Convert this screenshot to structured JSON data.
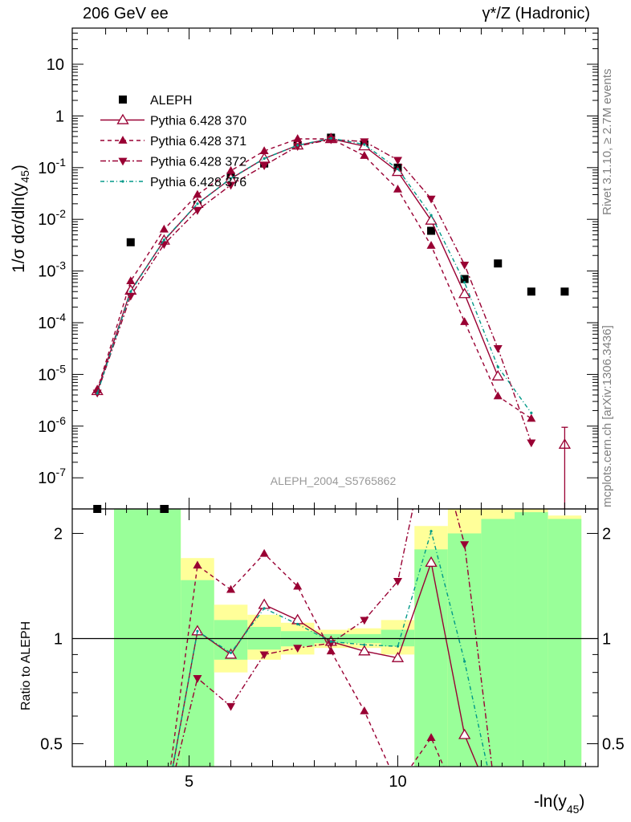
{
  "header": {
    "left": "206 GeV ee",
    "right": "γ*/Z (Hadronic)"
  },
  "side_labels": {
    "rivet": "Rivet 3.1.10, ≥ 2.7M events",
    "arxiv": "mcplots.cern.ch [arXiv:1306.3436]"
  },
  "watermark": "ALEPH_2004_S5765862",
  "colors": {
    "data": "#000000",
    "mc": "#990033",
    "mc376": "#009988",
    "band_green": "#99ff99",
    "band_yellow": "#ffff99"
  },
  "chart_data": [
    {
      "type": "scatter",
      "title": "206 GeV ee",
      "ylabel": "1/σ dσ/dln(y45)",
      "ylabel_sub": "45",
      "xlabel": "-ln(y45)",
      "yscale": "log",
      "ylim": [
        2.5e-08,
        50
      ],
      "xlim": [
        2.2,
        14.8
      ],
      "ytick_labels": [
        "10",
        "1",
        "10-1",
        "10-2",
        "10-3",
        "10-4",
        "10-5",
        "10-6",
        "10-7"
      ],
      "x": [
        2.8,
        3.6,
        4.4,
        5.2,
        6.0,
        6.8,
        7.6,
        8.4,
        9.2,
        10.0,
        10.8,
        11.6,
        12.4,
        13.2,
        14.0
      ],
      "series": [
        {
          "name": "ALEPH",
          "style": "data",
          "values": [
            2.5e-08,
            0.0036,
            2.5e-08,
            0.019,
            0.068,
            0.12,
            0.27,
            0.38,
            0.28,
            0.1,
            0.006,
            0.0007,
            0.0014,
            0.0004,
            0.0004
          ]
        },
        {
          "name": "Pythia 6.428 370",
          "style": "open-up",
          "values": [
            4.8e-06,
            0.00042,
            0.0039,
            0.02,
            0.061,
            0.15,
            0.27,
            0.36,
            0.26,
            0.083,
            0.0095,
            0.00036,
            9.2e-06,
            null,
            4.4e-07
          ]
        },
        {
          "name": "Pythia 6.428 371",
          "style": "filled-up",
          "values": [
            5e-06,
            0.00064,
            0.0064,
            0.03,
            0.087,
            0.21,
            0.36,
            0.36,
            0.17,
            0.038,
            0.0031,
            0.000104,
            3.8e-06,
            1.4e-06,
            null
          ]
        },
        {
          "name": "Pythia 6.428 372",
          "style": "filled-down",
          "values": [
            4.4e-06,
            0.00033,
            0.0033,
            0.015,
            0.046,
            0.11,
            0.26,
            0.35,
            0.32,
            0.14,
            0.025,
            0.00132,
            3.2e-05,
            4.8e-07,
            null
          ]
        },
        {
          "name": "Pythia 6.428 376",
          "style": "dots",
          "values": [
            4.3e-06,
            0.0004,
            0.004,
            0.02,
            0.062,
            0.15,
            0.27,
            0.37,
            0.28,
            0.094,
            0.012,
            0.0006,
            1.4e-05,
            1.8e-06,
            null
          ]
        }
      ]
    },
    {
      "type": "line",
      "ylabel": "Ratio to ALEPH",
      "yscale": "log",
      "ylim": [
        0.43,
        2.35
      ],
      "yticks": [
        0.5,
        1,
        2
      ],
      "ytick_labels": [
        "0.5",
        "1",
        "2"
      ],
      "xticks": [
        5,
        10
      ],
      "xtick_labels": [
        "5",
        "10"
      ],
      "reference_line": 1,
      "bands": {
        "edges": [
          3.2,
          4.8,
          5.6,
          6.4,
          7.2,
          8.0,
          8.8,
          9.6,
          10.4,
          11.2,
          12.0,
          12.8,
          13.6,
          14.4
        ],
        "green": [
          [
            0.4,
            2.35
          ],
          [
            0.4,
            1.47
          ],
          [
            0.87,
            1.13
          ],
          [
            0.93,
            1.08
          ],
          [
            0.95,
            1.05
          ],
          [
            0.97,
            1.03
          ],
          [
            0.97,
            1.03
          ],
          [
            0.95,
            1.06
          ],
          [
            0.4,
            1.8
          ],
          [
            0.4,
            2.0
          ],
          [
            0.4,
            2.2
          ],
          [
            0.4,
            2.3
          ],
          [
            0.4,
            2.2
          ]
        ],
        "yellow": [
          [
            0.4,
            2.35
          ],
          [
            0.4,
            1.7
          ],
          [
            0.8,
            1.25
          ],
          [
            0.87,
            1.17
          ],
          [
            0.9,
            1.11
          ],
          [
            0.94,
            1.06
          ],
          [
            0.94,
            1.07
          ],
          [
            0.9,
            1.13
          ],
          [
            0.4,
            2.1
          ],
          [
            0.4,
            2.4
          ],
          [
            0.4,
            2.4
          ],
          [
            0.4,
            2.4
          ],
          [
            0.4,
            2.25
          ]
        ]
      },
      "x": [
        2.8,
        3.6,
        4.4,
        5.2,
        6.0,
        6.8,
        7.6,
        8.4,
        9.2,
        10.0,
        10.8,
        11.6,
        12.4
      ],
      "series": [
        {
          "name": "Pythia 6.428 370",
          "style": "open-up",
          "values": [
            null,
            null,
            0.0,
            1.05,
            0.9,
            1.25,
            1.13,
            0.98,
            0.92,
            0.88,
            1.65,
            0.53,
            0.0
          ]
        },
        {
          "name": "Pythia 6.428 371",
          "style": "filled-up",
          "values": [
            null,
            null,
            0.0,
            1.62,
            1.38,
            1.75,
            1.41,
            0.92,
            0.62,
            0.38,
            0.52,
            0.0,
            null
          ]
        },
        {
          "name": "Pythia 6.428 372",
          "style": "filled-down",
          "values": [
            null,
            null,
            0.0,
            0.77,
            0.64,
            0.9,
            0.94,
            0.97,
            1.13,
            1.46,
            4.2,
            1.86,
            0.0
          ]
        },
        {
          "name": "Pythia 6.428 376",
          "style": "dots",
          "values": [
            null,
            null,
            0.0,
            1.05,
            0.91,
            1.22,
            1.1,
            0.98,
            0.96,
            0.95,
            2.03,
            0.86,
            0.0
          ]
        }
      ]
    }
  ]
}
